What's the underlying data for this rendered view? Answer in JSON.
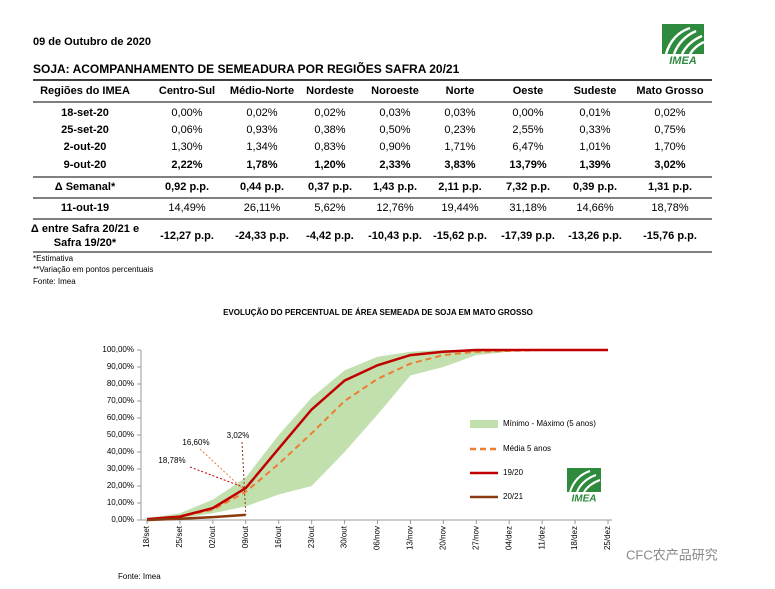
{
  "header": {
    "date": "09 de Outubro de 2020",
    "title": "SOJA: ACOMPANHAMENTO DE SEMEADURA POR REGIÕES SAFRA 20/21",
    "logo": "IMEA"
  },
  "table": {
    "columns": [
      "Regiões do IMEA",
      "Centro-Sul",
      "Médio-Norte",
      "Nordeste",
      "Noroeste",
      "Norte",
      "Oeste",
      "Sudeste",
      "Mato Grosso"
    ],
    "rows": [
      [
        "18-set-20",
        "0,00%",
        "0,02%",
        "0,02%",
        "0,03%",
        "0,03%",
        "0,00%",
        "0,01%",
        "0,02%"
      ],
      [
        "25-set-20",
        "0,06%",
        "0,93%",
        "0,38%",
        "0,50%",
        "0,23%",
        "2,55%",
        "0,33%",
        "0,75%"
      ],
      [
        "2-out-20",
        "1,30%",
        "1,34%",
        "0,83%",
        "0,90%",
        "1,71%",
        "6,47%",
        "1,01%",
        "1,70%"
      ],
      [
        "9-out-20",
        "2,22%",
        "1,78%",
        "1,20%",
        "2,33%",
        "3,83%",
        "13,79%",
        "1,39%",
        "3,02%"
      ],
      [
        "Δ Semanal*",
        "0,92 p.p.",
        "0,44 p.p.",
        "0,37 p.p.",
        "1,43 p.p.",
        "2,11 p.p.",
        "7,32 p.p.",
        "0,39 p.p.",
        "1,31 p.p."
      ],
      [
        "11-out-19",
        "14,49%",
        "26,11%",
        "5,62%",
        "12,76%",
        "19,44%",
        "31,18%",
        "14,66%",
        "18,78%"
      ],
      [
        [
          "Δ entre Safra 20/21 e",
          "Safra 19/20*"
        ],
        "-12,27 p.p.",
        "-24,33 p.p.",
        "-4,42 p.p.",
        "-10,43 p.p.",
        "-15,62 p.p.",
        "-17,39 p.p.",
        "-13,26 p.p.",
        "-15,76 p.p."
      ]
    ]
  },
  "notes": [
    "*Estimativa",
    "**Variação em pontos percentuais",
    "Fonte: Imea"
  ],
  "chart_data": {
    "type": "line",
    "title": "EVOLUÇÃO DO PERCENTUAL DE ÁREA SEMEADA DE SOJA EM MATO GROSSO",
    "categories": [
      "18/set",
      "25/set",
      "02/out",
      "09/out",
      "16/out",
      "23/out",
      "30/out",
      "06/nov",
      "13/nov",
      "20/nov",
      "27/nov",
      "04/dez",
      "11/dez",
      "18/dez",
      "25/dez"
    ],
    "band": {
      "name": "Mínimo - Máximo (5 anos)",
      "color": "#c2e0ad",
      "min": [
        0,
        1,
        4,
        8,
        15,
        20,
        40,
        62,
        85,
        90,
        97,
        99,
        100,
        100,
        100
      ],
      "max": [
        1,
        4,
        12,
        25,
        50,
        72,
        88,
        96,
        99,
        100,
        100,
        100,
        100,
        100,
        100
      ]
    },
    "series": [
      {
        "name": "Média 5 anos",
        "color": "#ed7d31",
        "dashed": true,
        "values": [
          0.5,
          2,
          6,
          16.6,
          33,
          51,
          70,
          83,
          92,
          97,
          99,
          99.5,
          100,
          100,
          100
        ],
        "value_labels": [
          null,
          null,
          null,
          "16,60%",
          null,
          null,
          null,
          null,
          null,
          null,
          null,
          null,
          null,
          null,
          null
        ]
      },
      {
        "name": "19/20",
        "color": "#c00000",
        "values": [
          0.5,
          2,
          7,
          18.78,
          42,
          65,
          82,
          91,
          97,
          99,
          100,
          100,
          100,
          100,
          100
        ],
        "value_labels": [
          null,
          null,
          null,
          "18,78%",
          null,
          null,
          null,
          null,
          null,
          null,
          null,
          null,
          null,
          null,
          null
        ]
      },
      {
        "name": "20/21",
        "color": "#8b3a0f",
        "values": [
          0.02,
          0.75,
          1.7,
          3.02,
          null,
          null,
          null,
          null,
          null,
          null,
          null,
          null,
          null,
          null,
          null
        ],
        "value_labels": [
          null,
          null,
          null,
          "3,02%",
          null,
          null,
          null,
          null,
          null,
          null,
          null,
          null,
          null,
          null,
          null
        ]
      }
    ],
    "ylim": [
      0,
      100
    ],
    "yticks": [
      {
        "value": 0,
        "label": "0,00%"
      },
      {
        "value": 10,
        "label": "10,00%"
      },
      {
        "value": 20,
        "label": "20,00%"
      },
      {
        "value": 30,
        "label": "30,00%"
      },
      {
        "value": 40,
        "label": "40,00%"
      },
      {
        "value": 50,
        "label": "50,00%"
      },
      {
        "value": 60,
        "label": "60,00%"
      },
      {
        "value": 70,
        "label": "70,00%"
      },
      {
        "value": 80,
        "label": "80,00%"
      },
      {
        "value": 90,
        "label": "90,00%"
      },
      {
        "value": 100,
        "label": "100,00%"
      }
    ],
    "grid": false,
    "legend": "right",
    "source": "Fonte: Imea",
    "logo": "IMEA"
  },
  "watermark": "CFC农产品研究"
}
